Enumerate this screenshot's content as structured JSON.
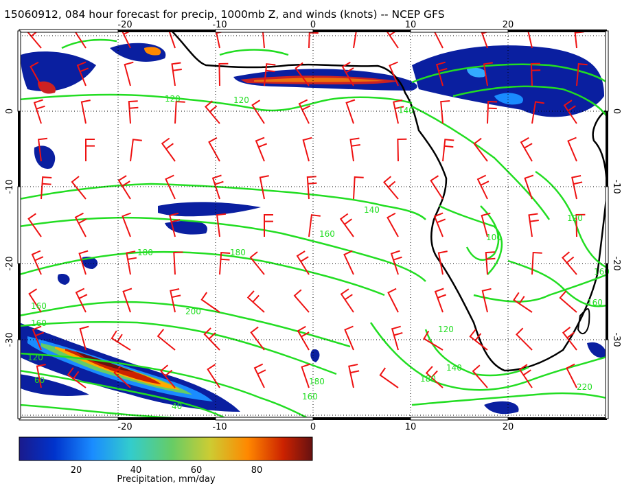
{
  "title": "15060912, 084 hour forecast for precip, 1000mb Z, and winds (knots) -- NCEP GFS",
  "x_ticks": [
    "-20",
    "-10",
    "0",
    "10",
    "20"
  ],
  "y_ticks": [
    "0",
    "-10",
    "-20",
    "-30"
  ],
  "colorbar": {
    "ticks": [
      "20",
      "40",
      "60",
      "80"
    ],
    "label": "Precipitation, mm/day",
    "colors": [
      "#1a1a8c",
      "#0033cc",
      "#1a8cff",
      "#33cccc",
      "#66cc66",
      "#cccc33",
      "#ff8800",
      "#cc2200",
      "#661111"
    ]
  },
  "contour_labels": [
    "120",
    "120",
    "140",
    "160",
    "180",
    "180",
    "160",
    "140",
    "160",
    "120",
    "200",
    "40",
    "60",
    "160",
    "180",
    "220",
    "140",
    "120",
    "160",
    "160",
    "100",
    "120",
    "180"
  ],
  "colors": {
    "contour": "#22dd22",
    "wind": "#ee1111",
    "coast": "#000000",
    "grid": "#000000"
  }
}
